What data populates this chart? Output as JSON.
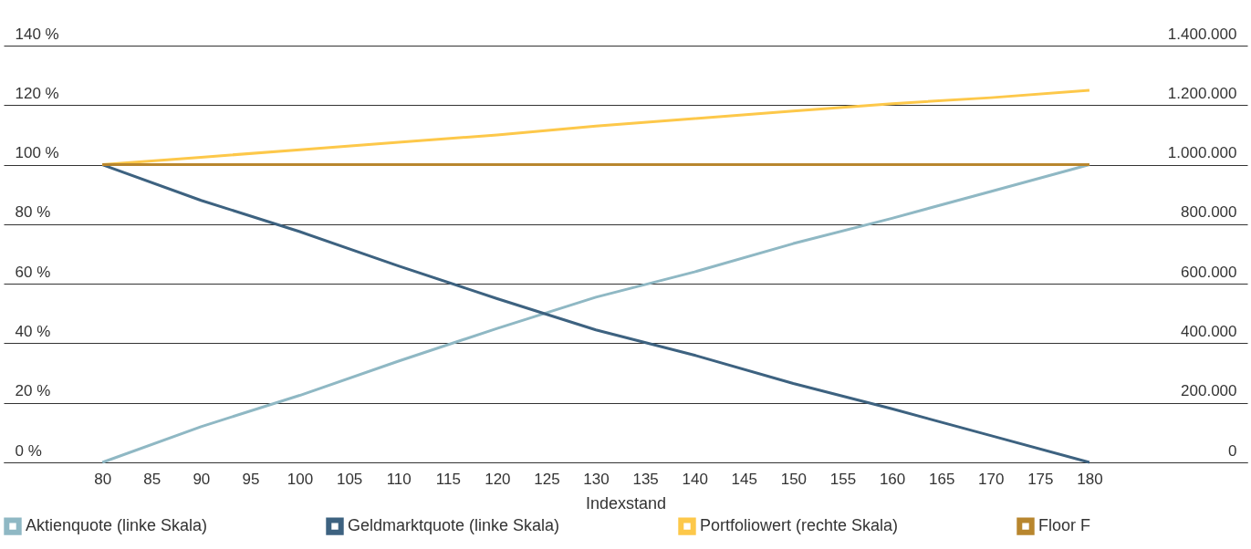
{
  "chart_data": {
    "type": "line",
    "xlabel": "Indexstand",
    "x": [
      80,
      90,
      100,
      110,
      120,
      130,
      140,
      150,
      160,
      170,
      180
    ],
    "xlim": [
      70,
      196
    ],
    "xticks": [
      80,
      85,
      90,
      95,
      100,
      105,
      110,
      115,
      120,
      125,
      130,
      135,
      140,
      145,
      150,
      155,
      160,
      165,
      170,
      175,
      180
    ],
    "ylim": [
      0,
      140.0
    ],
    "yticks": [
      {
        "value": 0,
        "label": "0 %"
      },
      {
        "value": 20,
        "label": "20 %"
      },
      {
        "value": 40,
        "label": "40 %"
      },
      {
        "value": 60,
        "label": "60 %"
      },
      {
        "value": 80,
        "label": "80 %"
      },
      {
        "value": 100,
        "label": "100 %"
      },
      {
        "value": 120,
        "label": "120 %"
      },
      {
        "value": 140,
        "label": "140 %"
      }
    ],
    "y2lim": [
      0,
      1400000
    ],
    "y2ticks": [
      0,
      {
        "value": 200000,
        "label": "200.000"
      },
      {
        "value": 400000,
        "label": "400.000"
      },
      {
        "value": 600000,
        "label": "600.000"
      },
      {
        "value": 800000,
        "label": "800.000"
      },
      {
        "value": 1000000,
        "label": "1.000.000"
      },
      {
        "value": 1200000,
        "label": "1.200.000"
      },
      {
        "value": 1400000,
        "label": "1.400.000"
      }
    ],
    "grid": "y",
    "legend": "bottom",
    "series": [
      {
        "name": "Aktienquote (linke Skala)",
        "color": "#8fb8c4",
        "values": [
          0,
          12,
          22.5,
          34,
          45,
          55.5,
          64,
          73.5,
          82,
          91,
          100
        ]
      },
      {
        "name": "Geldmarktquote (linke Skala)",
        "color": "#3d6280",
        "values": [
          100,
          88,
          77.5,
          66,
          55,
          44.5,
          36,
          26.5,
          18,
          9,
          0
        ]
      },
      {
        "name": "Portfoliowert (rechte Skala)",
        "color": "#fdc84a",
        "axis": "y2",
        "values": [
          1000000,
          1025000,
          1050000,
          1075000,
          1100000,
          1130000,
          1155000,
          1180000,
          1205000,
          1225000,
          1250000
        ]
      },
      {
        "name": "Floor F",
        "color": "#b8862e",
        "axis": "y2",
        "values": [
          1000000,
          1000000,
          1000000,
          1000000,
          1000000,
          1000000,
          1000000,
          1000000,
          1000000,
          1000000,
          1000000
        ]
      }
    ]
  }
}
